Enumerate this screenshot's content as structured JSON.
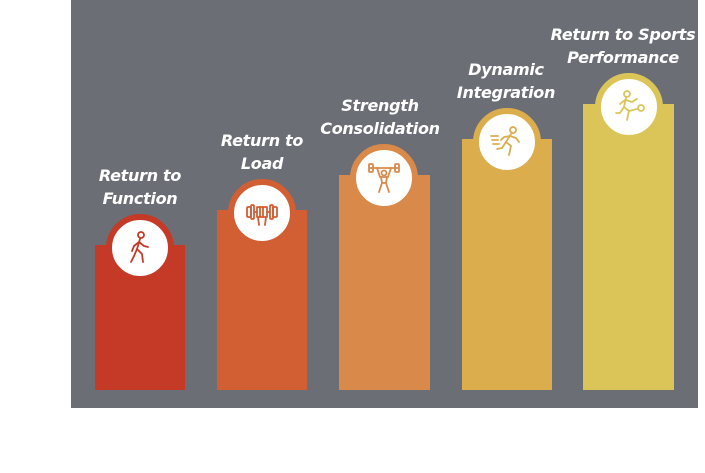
{
  "steps": [
    {
      "label_line1": "Return to",
      "label_line2": "Function",
      "icon": "walking-person-icon",
      "color": "#c53a27"
    },
    {
      "label_line1": "Return to",
      "label_line2": "Load",
      "icon": "dumbbell-fist-icon",
      "color": "#d25e33"
    },
    {
      "label_line1": "Strength",
      "label_line2": "Consolidation",
      "icon": "weightlifter-icon",
      "color": "#d98949"
    },
    {
      "label_line1": "Dynamic",
      "label_line2": "Integration",
      "icon": "running-person-icon",
      "color": "#dbad4c"
    },
    {
      "label_line1": "Return to Sports",
      "label_line2": "Performance",
      "icon": "soccer-player-icon",
      "color": "#dbc559"
    }
  ],
  "colors": {
    "panel": "#6b6e74",
    "badge_bg": "#ffffff"
  }
}
